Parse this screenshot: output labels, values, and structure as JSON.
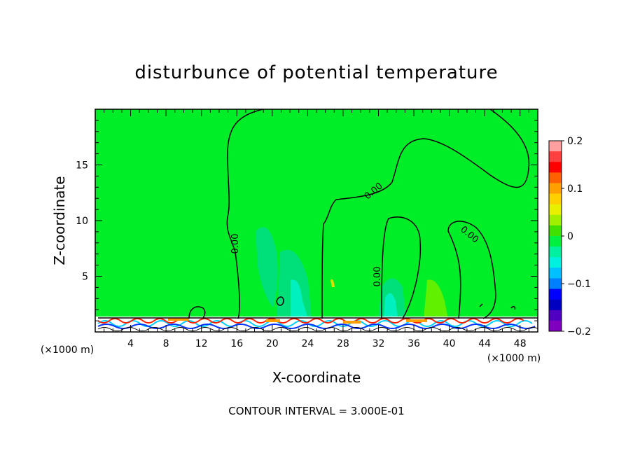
{
  "chart_data": {
    "type": "heatmap",
    "title": "disturbunce of potential temperature",
    "xlabel": "X-coordinate",
    "ylabel": "Z-coordinate",
    "x_unit_left": "(×1000 m)",
    "x_unit_right": "(×1000 m)",
    "xlim": [
      0,
      50
    ],
    "ylim": [
      0,
      20
    ],
    "x_ticks": [
      4,
      8,
      12,
      16,
      20,
      24,
      28,
      32,
      36,
      40,
      44,
      48
    ],
    "y_ticks": [
      5,
      10,
      15
    ],
    "colorbar": {
      "range": [
        -0.2,
        0.2
      ],
      "ticks": [
        "0.2",
        "0.1",
        "0",
        "−0.1",
        "−0.2"
      ],
      "colors": [
        "#ffa0a0",
        "#ff4040",
        "#ff0000",
        "#ff6000",
        "#ffa000",
        "#ffd000",
        "#e8f000",
        "#a0f000",
        "#40e000",
        "#00f040",
        "#00f0a0",
        "#00f0e0",
        "#00c0ff",
        "#0080ff",
        "#0000ff",
        "#0000c0",
        "#5000c0",
        "#8000c0"
      ]
    },
    "contour_labels": [
      "0.00",
      "0.00",
      "0.00",
      "0.00"
    ],
    "footer": "CONTOUR INTERVAL = 3.000E-01",
    "background_value": 0
  }
}
